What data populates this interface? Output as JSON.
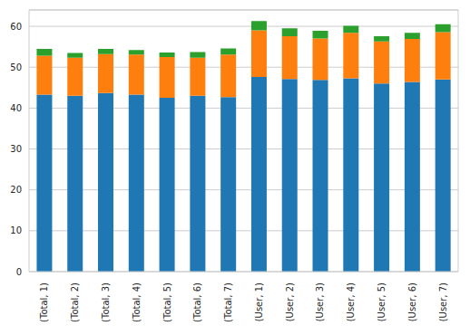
{
  "chart_data": {
    "type": "bar",
    "stacked": true,
    "grid": true,
    "categories": [
      "(Total, 1)",
      "(Total, 2)",
      "(Total, 3)",
      "(Total, 4)",
      "(Total, 5)",
      "(Total, 6)",
      "(Total, 7)",
      "(User, 1)",
      "(User, 2)",
      "(User, 3)",
      "(User, 4)",
      "(User, 5)",
      "(User, 6)",
      "(User, 7)"
    ],
    "series": [
      {
        "color": "#1f77b4",
        "values": [
          43.3,
          43.0,
          43.7,
          43.3,
          42.5,
          43.0,
          42.7,
          47.6,
          47.1,
          46.9,
          47.3,
          46.0,
          46.4,
          47.0
        ]
      },
      {
        "color": "#ff7f0e",
        "values": [
          9.5,
          9.3,
          9.5,
          9.8,
          10.0,
          9.3,
          10.4,
          11.4,
          10.5,
          10.1,
          11.1,
          10.3,
          10.5,
          11.6
        ]
      },
      {
        "color": "#2ca02c",
        "values": [
          1.7,
          1.2,
          1.3,
          1.1,
          1.1,
          1.4,
          1.5,
          2.3,
          1.9,
          1.9,
          1.7,
          1.3,
          1.5,
          1.9
        ]
      }
    ],
    "ylim": [
      0,
      64
    ],
    "yticks": [
      0,
      10,
      20,
      30,
      40,
      50,
      60
    ]
  }
}
